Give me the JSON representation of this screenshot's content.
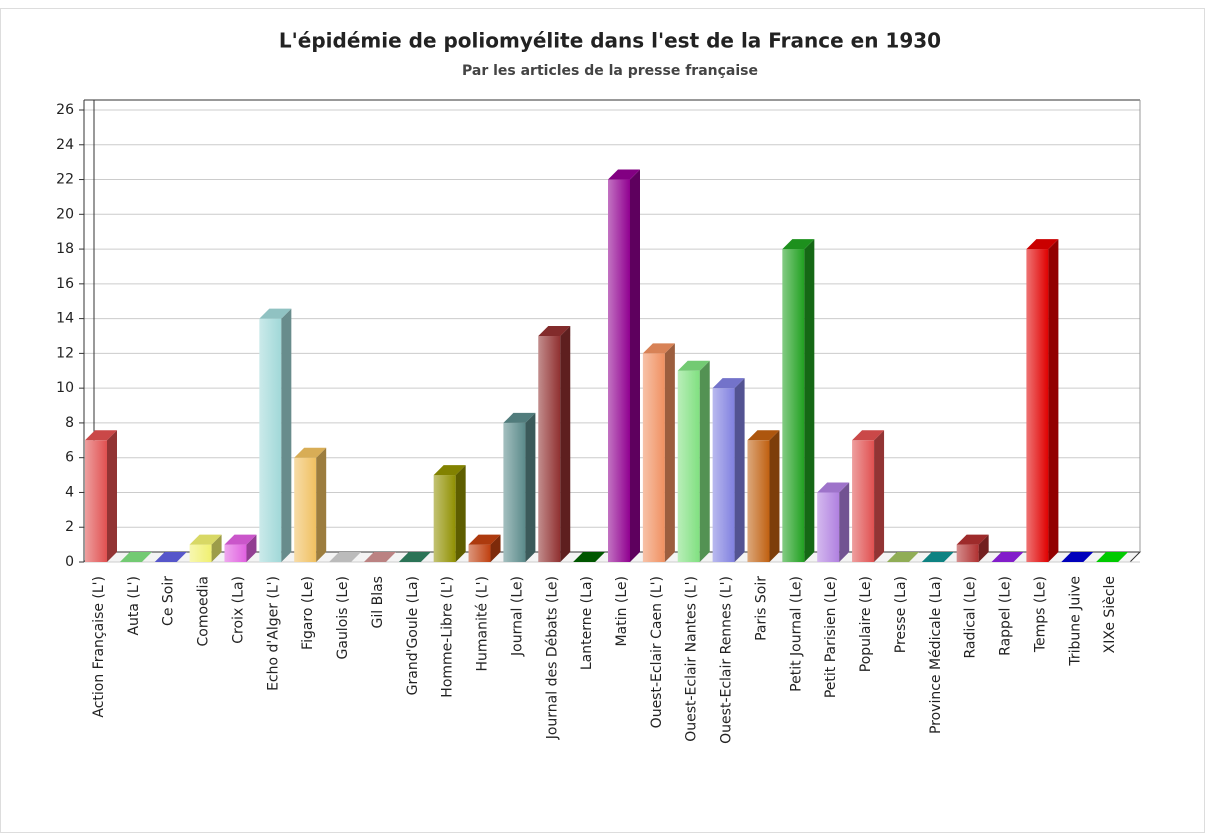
{
  "chart_data": {
    "type": "bar3d",
    "title": "L'épidémie de poliomyélite dans l'est de la France en 1930",
    "subtitle": "Par les articles de la presse française",
    "categories": [
      "Action Française (L')",
      "Auta (L')",
      "Ce Soir",
      "Comoedia",
      "Croix (La)",
      "Echo d'Alger (L')",
      "Figaro (Le)",
      "Gaulois (Le)",
      "Gil Blas",
      "Grand'Goule (La)",
      "Homme-Libre (L')",
      "Humanité (L')",
      "Journal (Le)",
      "Journal des Débats (Le)",
      "Lanterne (La)",
      "Matin (Le)",
      "Ouest-Eclair Caen (L')",
      "Ouest-Eclair Nantes (L')",
      "Ouest-Eclair Rennes (L')",
      "Paris Soir",
      "Petit Journal (Le)",
      "Petit Parisien (Le)",
      "Populaire (Le)",
      "Presse (La)",
      "Province Médicale (La)",
      "Radical (Le)",
      "Rappel (Le)",
      "Temps (Le)",
      "Tribune Juive",
      "XIXe Siècle"
    ],
    "values": [
      7,
      0,
      0,
      1,
      1,
      14,
      6,
      0,
      0,
      0,
      5,
      1,
      8,
      13,
      0,
      22,
      12,
      11,
      10,
      7,
      18,
      4,
      7,
      0,
      0,
      1,
      0,
      18,
      0,
      0
    ],
    "colors": [
      "#e05050",
      "#80e080",
      "#6060e0",
      "#f0f070",
      "#e060e0",
      "#a0d8d8",
      "#f0c060",
      "#d0d0d0",
      "#d09090",
      "#308060",
      "#909000",
      "#c04010",
      "#5a8a8a",
      "#903030",
      "#006000",
      "#900090",
      "#f09060",
      "#80e080",
      "#8080e0",
      "#c06010",
      "#20a020",
      "#b080e0",
      "#e05050",
      "#a0c060",
      "#109090",
      "#b03030",
      "#9020e0",
      "#e00000",
      "#0000d0",
      "#00e000"
    ],
    "ylim": [
      0,
      26
    ],
    "yticks": [
      0,
      2,
      4,
      6,
      8,
      10,
      12,
      14,
      16,
      18,
      20,
      22,
      24,
      26
    ],
    "grid": true
  }
}
